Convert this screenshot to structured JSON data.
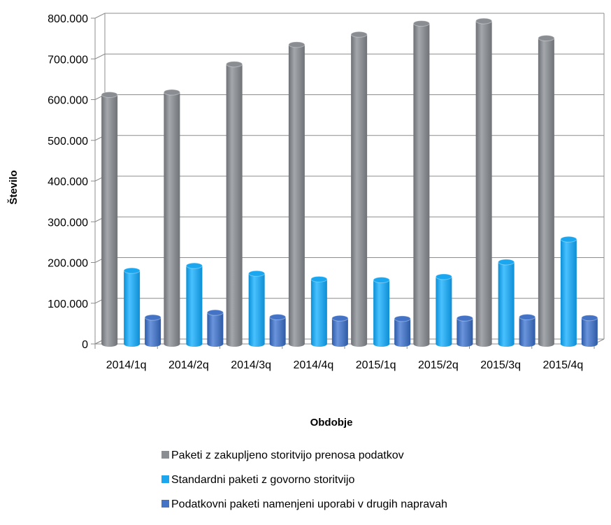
{
  "chart_data": {
    "type": "bar",
    "categories": [
      "2014/1q",
      "2014/2q",
      "2014/3q",
      "2014/4q",
      "2015/1q",
      "2015/2q",
      "2015/3q",
      "2015/4q"
    ],
    "series": [
      {
        "name": "Paketi z zakupljeno storitvijo prenosa podatkov",
        "color": "#8a8d92",
        "values": [
          612000,
          618000,
          687000,
          735000,
          760000,
          787000,
          793000,
          751000
        ]
      },
      {
        "name": "Standardni paketi z govorno storitvijo",
        "color": "#1aa7f0",
        "values": [
          180000,
          192000,
          173000,
          159000,
          157000,
          165000,
          201000,
          257000
        ]
      },
      {
        "name": "Podatkovni paketi namenjeni uporabi v drugih napravah",
        "color": "#4473c5",
        "values": [
          65000,
          77000,
          66000,
          63000,
          62000,
          63000,
          66000,
          64000
        ]
      }
    ],
    "y_ticks": [
      "0",
      "100.000",
      "200.000",
      "300.000",
      "400.000",
      "500.000",
      "600.000",
      "700.000",
      "800.000"
    ],
    "ylim": [
      0,
      800000
    ],
    "xlabel": "Obdobje",
    "ylabel": "Število",
    "grid": true,
    "legend_position": "bottom"
  }
}
